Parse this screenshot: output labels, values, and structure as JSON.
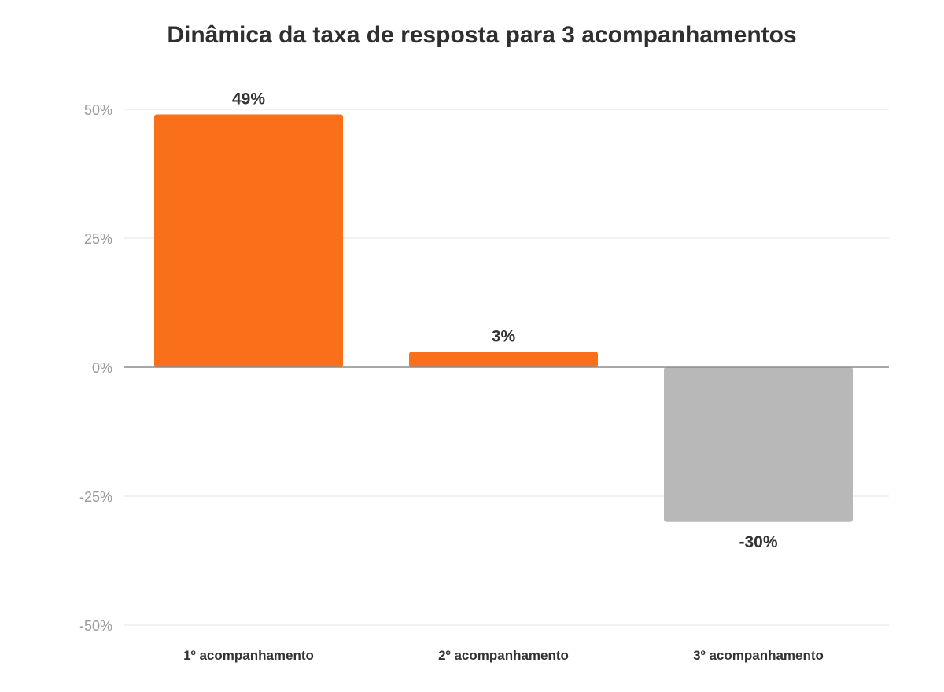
{
  "chart_data": {
    "type": "bar",
    "title": "Dinâmica da taxa de resposta para 3 acompanhamentos",
    "xlabel": "",
    "ylabel": "",
    "categories": [
      "1º acompanhamento",
      "2º acompanhamento",
      "3º acompanhamento"
    ],
    "values": [
      49,
      3,
      -30
    ],
    "value_labels": [
      "49%",
      "3%",
      "-30%"
    ],
    "ylim": [
      -50,
      50
    ],
    "yticks": [
      50,
      25,
      0,
      -25,
      -50
    ],
    "ytick_labels": [
      "50%",
      "25%",
      "0%",
      "-25%",
      "-50%"
    ],
    "grid": true,
    "legend": "none",
    "bar_colors": [
      "#f96f1a",
      "#f96f1a",
      "#b8b8b8"
    ],
    "gridline_color": "#e6e6e6",
    "zero_line_color": "#8c8c8c"
  }
}
